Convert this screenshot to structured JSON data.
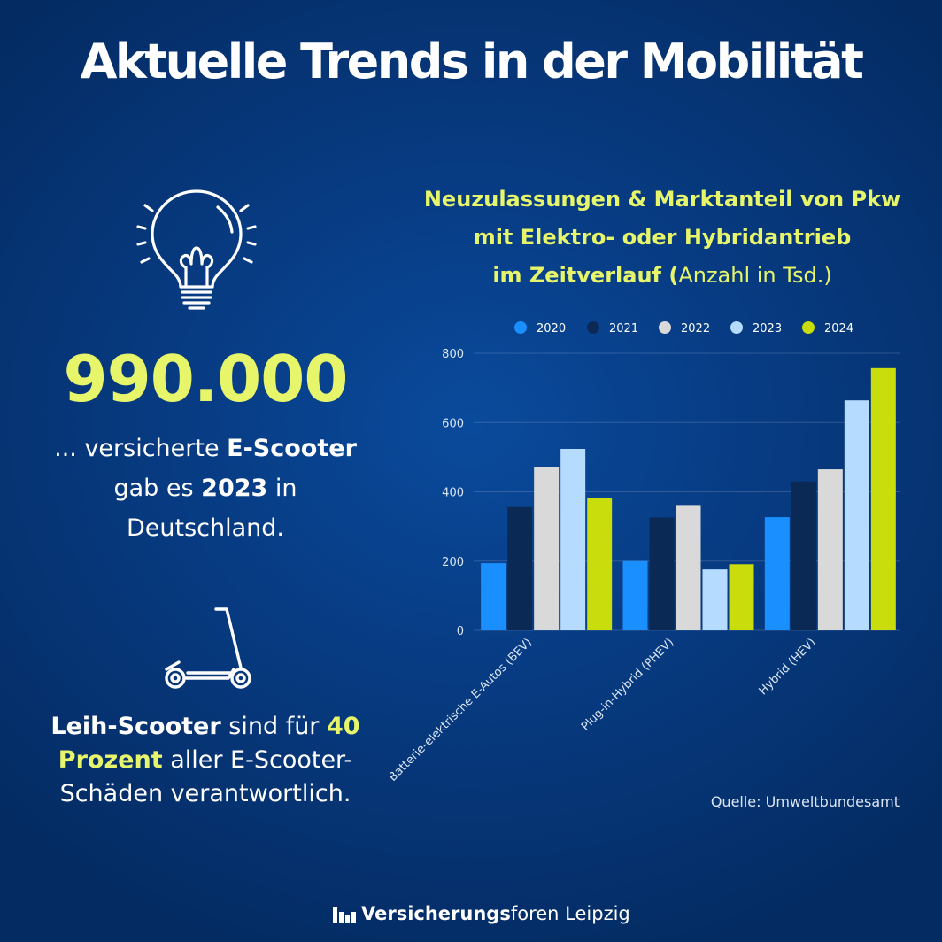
{
  "page": {
    "title": "Aktuelle Trends in der Mobilität"
  },
  "left": {
    "big_number": "990.000",
    "fact1": {
      "part1": "... versicherte ",
      "bold1": "E-Scooter",
      "part2": " gab es ",
      "bold2": "2023",
      "part3": " in Deutschland."
    },
    "fact2": {
      "bold1": "Leih-Scooter",
      "part1": " sind für ",
      "hl1": "40 Prozent",
      "part2": " aller E-Scooter-Schäden verantwortlich."
    },
    "icons": [
      "lightbulb-icon",
      "e-scooter-icon"
    ]
  },
  "chart_title": {
    "line1": "Neuzulassungen & Marktanteil von Pkw",
    "line2": "mit Elektro- oder Hybridantrieb",
    "line3_bold": "im Zeitverlauf (",
    "line3_normal": "Anzahl in Tsd.)"
  },
  "colors": {
    "2020": "#1a8fff",
    "2021": "#0a2a55",
    "2022": "#d9d9d9",
    "2023": "#b5dcff",
    "2024": "#c9dc0c",
    "highlight": "#e6f56a"
  },
  "chart_data": {
    "type": "bar",
    "title": "Neuzulassungen & Marktanteil von Pkw mit Elektro- oder Hybridantrieb im Zeitverlauf (Anzahl in Tsd.)",
    "categories": [
      "Batterie-elektrische E-Autos (BEV)",
      "Plug-in-Hybrid (PHEV)",
      "Hybrid (HEV)"
    ],
    "series": [
      {
        "name": "2020",
        "values": [
          194,
          200,
          327
        ]
      },
      {
        "name": "2021",
        "values": [
          356,
          326,
          430
        ]
      },
      {
        "name": "2022",
        "values": [
          471,
          362,
          465
        ]
      },
      {
        "name": "2023",
        "values": [
          524,
          176,
          664
        ]
      },
      {
        "name": "2024",
        "values": [
          381,
          191,
          757
        ]
      }
    ],
    "ylim": [
      0,
      800
    ],
    "yticks": [
      "0",
      "200",
      "400",
      "600",
      "800"
    ],
    "grid": true,
    "legend": "top"
  },
  "source": "Quelle: Umweltbundesamt",
  "logo": {
    "bold": "Versicherungs",
    "normal": "foren Leipzig"
  }
}
